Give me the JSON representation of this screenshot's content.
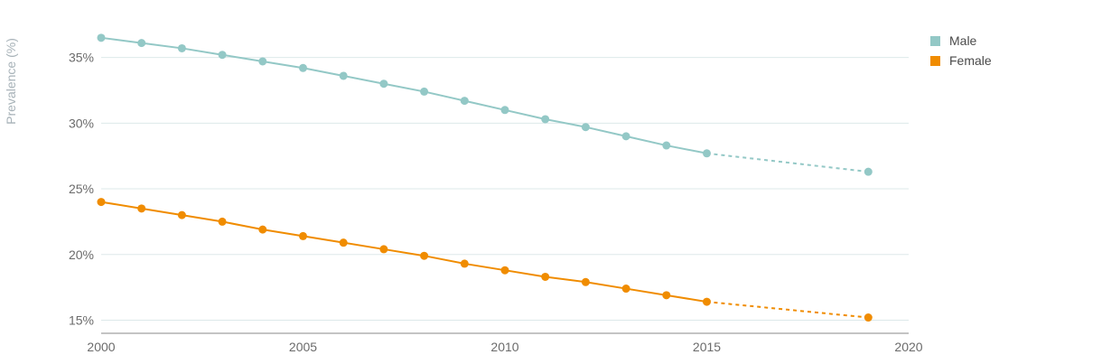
{
  "chart_data": {
    "type": "line",
    "title": "",
    "xlabel": "",
    "ylabel": "Prevalence (%)",
    "xlim": [
      2000,
      2020
    ],
    "ylim": [
      14,
      38
    ],
    "x_ticks": [
      2000,
      2005,
      2010,
      2015,
      2020
    ],
    "y_ticks": [
      15,
      20,
      25,
      30,
      35
    ],
    "y_tick_suffix": "%",
    "grid": "horizontal",
    "legend_position": "top-right",
    "series": [
      {
        "name": "Male",
        "color": "#93c8c6",
        "x": [
          2000,
          2001,
          2002,
          2003,
          2004,
          2005,
          2006,
          2007,
          2008,
          2009,
          2010,
          2011,
          2012,
          2013,
          2014,
          2015
        ],
        "values": [
          36.5,
          36.1,
          35.7,
          35.2,
          34.7,
          34.2,
          33.6,
          33.0,
          32.4,
          31.7,
          31.0,
          30.3,
          29.7,
          29.0,
          28.3,
          27.7
        ],
        "projection": {
          "x": [
            2015,
            2019
          ],
          "values": [
            27.7,
            26.3
          ]
        }
      },
      {
        "name": "Female",
        "color": "#f08c00",
        "x": [
          2000,
          2001,
          2002,
          2003,
          2004,
          2005,
          2006,
          2007,
          2008,
          2009,
          2010,
          2011,
          2012,
          2013,
          2014,
          2015
        ],
        "values": [
          24.0,
          23.5,
          23.0,
          22.5,
          21.9,
          21.4,
          20.9,
          20.4,
          19.9,
          19.3,
          18.8,
          18.3,
          17.9,
          17.4,
          16.9,
          16.4
        ],
        "projection": {
          "x": [
            2015,
            2019
          ],
          "values": [
            16.4,
            15.2
          ]
        }
      }
    ]
  }
}
